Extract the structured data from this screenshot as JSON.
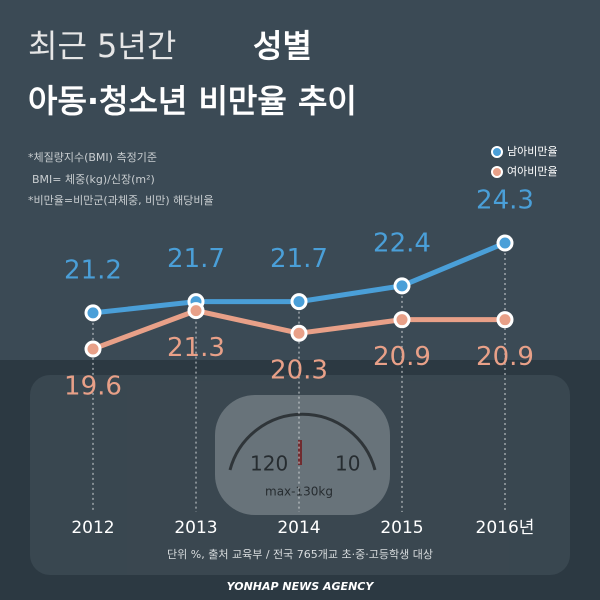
{
  "chart_data": {
    "type": "line",
    "title_lead": "최근 5년간",
    "title_highlight": "성별",
    "title_line2": "아동·청소년 비만율 추이",
    "notes": [
      "*체질량지수(BMI) 측정기준",
      "BMI= 체중(kg)/신장(m²)",
      "*비만율=비만군(과체중, 비만) 해당비율"
    ],
    "categories": [
      "2012",
      "2013",
      "2014",
      "2015",
      "2016년"
    ],
    "series": [
      {
        "name": "남아비만율",
        "color": "#4a9fd8",
        "values": [
          21.2,
          21.7,
          21.7,
          22.4,
          24.3
        ]
      },
      {
        "name": "여아비만율",
        "color": "#e8a088",
        "values": [
          19.6,
          21.3,
          20.3,
          20.9,
          20.9
        ]
      }
    ],
    "source": "단위 %, 출처 교육부 / 전국 765개교 초·중·고등학생 대상",
    "credit": "YONHAP NEWS AGENCY"
  }
}
